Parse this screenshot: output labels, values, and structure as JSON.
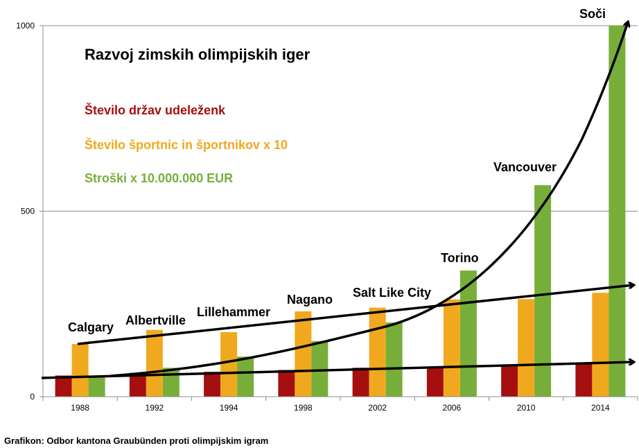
{
  "chart_data": {
    "type": "bar",
    "title": "Razvoj zimskih olimpijskih iger",
    "categories": [
      "1988",
      "1992",
      "1994",
      "1998",
      "2002",
      "2006",
      "2010",
      "2014"
    ],
    "cities": [
      "Calgary",
      "Albertville",
      "Lillehammer",
      "Nagano",
      "Salt Like City",
      "Torino",
      "Vancouver",
      "Soči"
    ],
    "series": [
      {
        "name": "Število držav udeleženk",
        "color": "#a50f0f",
        "values": [
          57,
          64,
          67,
          72,
          78,
          80,
          82,
          88
        ]
      },
      {
        "name": "Število športnic in športnikov x 10",
        "color": "#f0a91e",
        "values": [
          142,
          180,
          174,
          230,
          240,
          262,
          263,
          280
        ]
      },
      {
        "name": "Stroški x 10.000.000 EUR",
        "color": "#77ae3a",
        "values": [
          52,
          78,
          108,
          150,
          200,
          340,
          570,
          1000
        ]
      }
    ],
    "ylim": [
      0,
      1000
    ],
    "yticks": [
      0,
      500,
      1000
    ],
    "grid": true,
    "legend": "top-left"
  },
  "caption": "Grafikon: Odbor kantona Graubünden proti olimpijskim igram"
}
